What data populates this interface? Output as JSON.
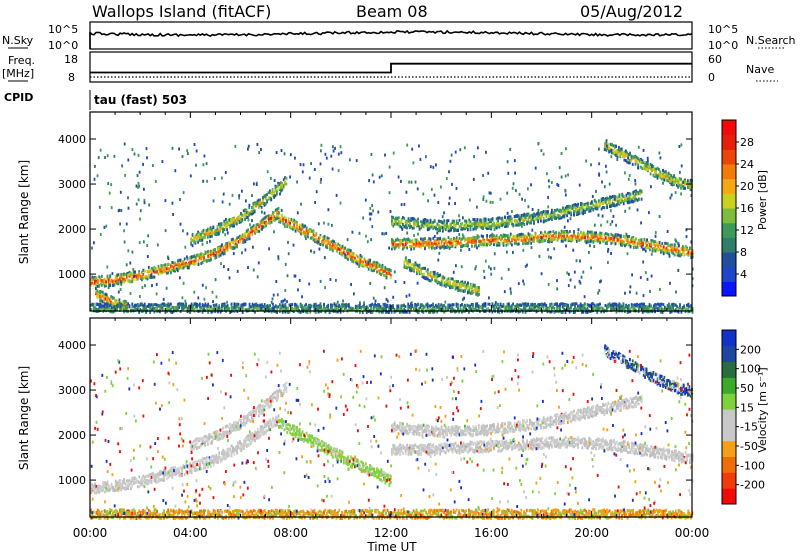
{
  "header": {
    "title": "Wallops Island (fitACF)",
    "beam": "Beam 08",
    "date": "05/Aug/2012"
  },
  "top_panels": {
    "nsky_label": "N.Sky",
    "nsky_ticks": [
      "10^5",
      "10^0"
    ],
    "nsearch_label": "N.Search",
    "nsearch_ticks": [
      "10^5",
      "10^0"
    ],
    "freq_label_1": "Freq.",
    "freq_label_2": "[MHz]",
    "freq_ticks": [
      "18",
      "8"
    ],
    "nave_label": "Nave",
    "nave_ticks": [
      "60",
      "0"
    ],
    "cpid_label": "CPID",
    "cpid_value": "tau (fast) 503"
  },
  "chart_data": [
    {
      "type": "heatmap",
      "quantity": "Power",
      "ylabel": "Slant Range [km]",
      "colorbar_label": "Power [dB]",
      "ylim": [
        180,
        4600
      ],
      "yticks": [
        1000,
        2000,
        3000,
        4000
      ],
      "colorbar": {
        "colors": [
          "#0a14ff",
          "#1e46c8",
          "#234e9a",
          "#2f7d6a",
          "#3f9a5a",
          "#7dbd3a",
          "#c8d21e",
          "#f5a814",
          "#f07d0a",
          "#eb460a",
          "#e61e0a",
          "#f00a0a"
        ],
        "labels": [
          "4",
          "8",
          "12",
          "16",
          "20",
          "24",
          "28"
        ]
      },
      "features": [
        {
          "name": "main-band-evening",
          "x": [
            0,
            1,
            2,
            3,
            4,
            5,
            6,
            7.5
          ],
          "y": [
            850,
            900,
            1000,
            1150,
            1300,
            1500,
            1800,
            2400
          ],
          "intensity": 0.9
        },
        {
          "name": "upper-band-evening",
          "x": [
            4,
            5,
            6,
            7,
            7.8
          ],
          "y": [
            1800,
            2000,
            2300,
            2700,
            3100
          ],
          "intensity": 0.6
        },
        {
          "name": "low-range-morning",
          "x": [
            0.2,
            0.6,
            1,
            1.5
          ],
          "y": [
            600,
            480,
            380,
            300
          ],
          "intensity": 0.8
        },
        {
          "name": "descending-band",
          "x": [
            7.5,
            8.5,
            9.5,
            10.5,
            11.5,
            12
          ],
          "y": [
            2300,
            2000,
            1700,
            1400,
            1150,
            1000
          ],
          "intensity": 0.9
        },
        {
          "name": "post-switch-band",
          "x": [
            12,
            13,
            14,
            15,
            16,
            17,
            18,
            19,
            20,
            21,
            22,
            23,
            24
          ],
          "y": [
            1700,
            1700,
            1720,
            1760,
            1780,
            1800,
            1850,
            1880,
            1850,
            1800,
            1700,
            1600,
            1500
          ],
          "intensity": 0.85
        },
        {
          "name": "upper-band-day",
          "x": [
            12,
            14,
            16,
            18,
            20,
            22
          ],
          "y": [
            2200,
            2100,
            2150,
            2300,
            2550,
            2800
          ],
          "intensity": 0.5
        },
        {
          "name": "rising-streak",
          "x": [
            20.5,
            21.5,
            22.5,
            23.5,
            24
          ],
          "y": [
            3900,
            3600,
            3300,
            3050,
            3000
          ],
          "intensity": 0.6
        },
        {
          "name": "lower-streaks",
          "x": [
            12.5,
            13.5,
            14.5,
            15.5
          ],
          "y": [
            1300,
            1000,
            800,
            650
          ],
          "intensity": 0.6
        },
        {
          "name": "near-range-line",
          "x": [
            0,
            4,
            8,
            12,
            16,
            20,
            24
          ],
          "y": [
            260,
            260,
            250,
            250,
            260,
            260,
            250
          ],
          "intensity": 0.3
        }
      ]
    },
    {
      "type": "heatmap",
      "quantity": "Velocity",
      "ylabel": "Slant Range [km]",
      "xlabel": "Time UT",
      "colorbar_label": "Velocity [m s⁻¹]",
      "ylim": [
        180,
        4600
      ],
      "yticks": [
        1000,
        2000,
        3000,
        4000
      ],
      "xticks": [
        "00:00",
        "04:00",
        "08:00",
        "12:00",
        "16:00",
        "20:00",
        "00:00"
      ],
      "colorbar": {
        "colors": [
          "#f00a0a",
          "#f03c0a",
          "#f06e0a",
          "#f5a014",
          "#c8c8c8",
          "#c8c8c8",
          "#7dd23c",
          "#3caa28",
          "#286e3c",
          "#1e46a0",
          "#1432c8"
        ],
        "labels": [
          "-200",
          "-100",
          "-50",
          "-15",
          "15",
          "50",
          "100",
          "200"
        ]
      },
      "features": [
        {
          "name": "main-band-evening",
          "x": [
            0,
            1,
            2,
            3,
            4,
            5,
            6,
            7.5
          ],
          "y": [
            850,
            900,
            1000,
            1150,
            1300,
            1500,
            1800,
            2400
          ],
          "tone": "grey"
        },
        {
          "name": "upper-band-evening",
          "x": [
            4,
            5,
            6,
            7,
            7.8
          ],
          "y": [
            1800,
            2000,
            2300,
            2700,
            3100
          ],
          "tone": "grey"
        },
        {
          "name": "descending-band",
          "x": [
            7.5,
            8.5,
            9.5,
            10.5,
            11.5,
            12
          ],
          "y": [
            2300,
            2000,
            1700,
            1400,
            1150,
            1000
          ],
          "tone": "green"
        },
        {
          "name": "post-switch-band",
          "x": [
            12,
            13,
            14,
            15,
            16,
            17,
            18,
            19,
            20,
            21,
            22,
            23,
            24
          ],
          "y": [
            1700,
            1700,
            1720,
            1760,
            1780,
            1800,
            1850,
            1880,
            1850,
            1800,
            1700,
            1600,
            1500
          ],
          "tone": "grey"
        },
        {
          "name": "upper-band-day",
          "x": [
            12,
            14,
            16,
            18,
            20,
            22
          ],
          "y": [
            2200,
            2100,
            2150,
            2300,
            2550,
            2800
          ],
          "tone": "grey"
        },
        {
          "name": "rising-streak",
          "x": [
            20.5,
            21.5,
            22.5,
            23.5,
            24
          ],
          "y": [
            3900,
            3600,
            3300,
            3050,
            3000
          ],
          "tone": "blue"
        },
        {
          "name": "near-range-line",
          "x": [
            0,
            4,
            8,
            12,
            16,
            20,
            24
          ],
          "y": [
            260,
            260,
            250,
            250,
            260,
            260,
            250
          ],
          "tone": "orange"
        }
      ]
    }
  ],
  "freq_data": {
    "x": [
      0,
      12,
      12,
      24
    ],
    "y": [
      10.5,
      10.5,
      14.5,
      14.5
    ]
  },
  "nave_data": {
    "x": [
      0,
      24
    ],
    "y": [
      3,
      3
    ]
  }
}
